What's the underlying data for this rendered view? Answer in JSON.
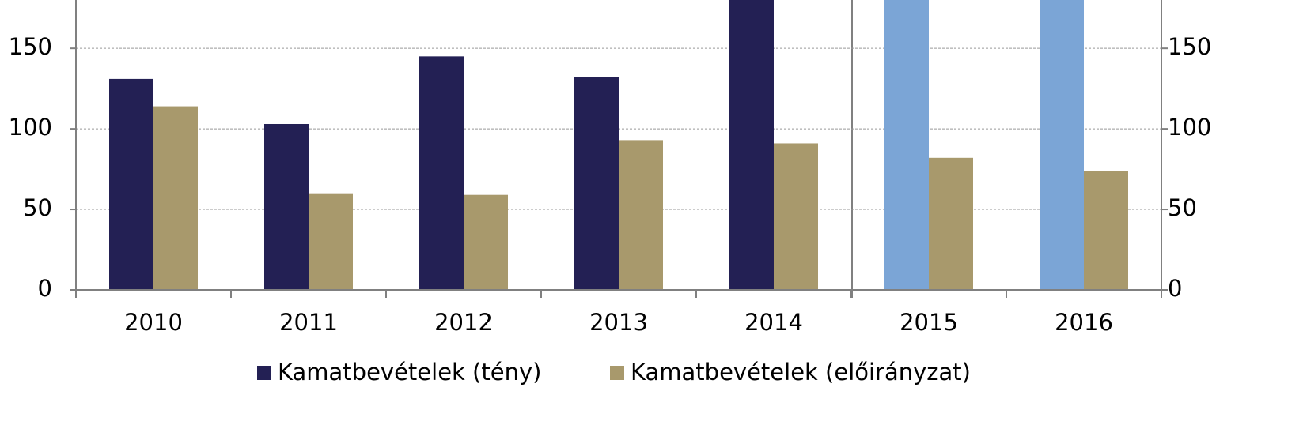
{
  "chart_data": {
    "type": "bar",
    "categories": [
      "2010",
      "2011",
      "2012",
      "2013",
      "2014",
      "2015",
      "2016"
    ],
    "series": [
      {
        "name": "Kamatbevételek (tény)",
        "color": "#232054",
        "colors": [
          "#232054",
          "#232054",
          "#232054",
          "#232054",
          "#232054",
          "#7ba5d6",
          "#7ba5d6"
        ],
        "values": [
          131,
          103,
          145,
          132,
          180,
          180,
          180
        ]
      },
      {
        "name": "Kamatbevételek (előirányzat)",
        "color": "#a8996c",
        "values": [
          114,
          60,
          59,
          93,
          91,
          82,
          74
        ]
      }
    ],
    "ylim": [
      0,
      180
    ],
    "yticks": [
      0,
      50,
      100,
      150
    ],
    "y2lim": [
      0,
      180
    ],
    "y2ticks": [
      0,
      50,
      100,
      150
    ],
    "grid": true
  }
}
